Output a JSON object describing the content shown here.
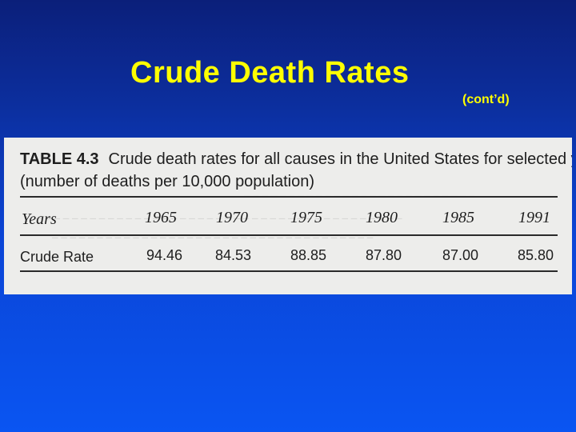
{
  "slide": {
    "title": "Crude Death Rates",
    "subtitle": "(cont’d)"
  },
  "table": {
    "tag": "TABLE 4.3",
    "caption_line1": "Crude death rates for all causes in the United States for selected years",
    "caption_line2": "(number of deaths per 10,000 population)",
    "header_label": "Years",
    "years": [
      "1965",
      "1970",
      "1975",
      "1980",
      "1985",
      "1991"
    ],
    "row_label": "Crude Rate",
    "values": [
      "94.46",
      "84.53",
      "88.85",
      "87.80",
      "87.00",
      "85.80"
    ]
  }
}
